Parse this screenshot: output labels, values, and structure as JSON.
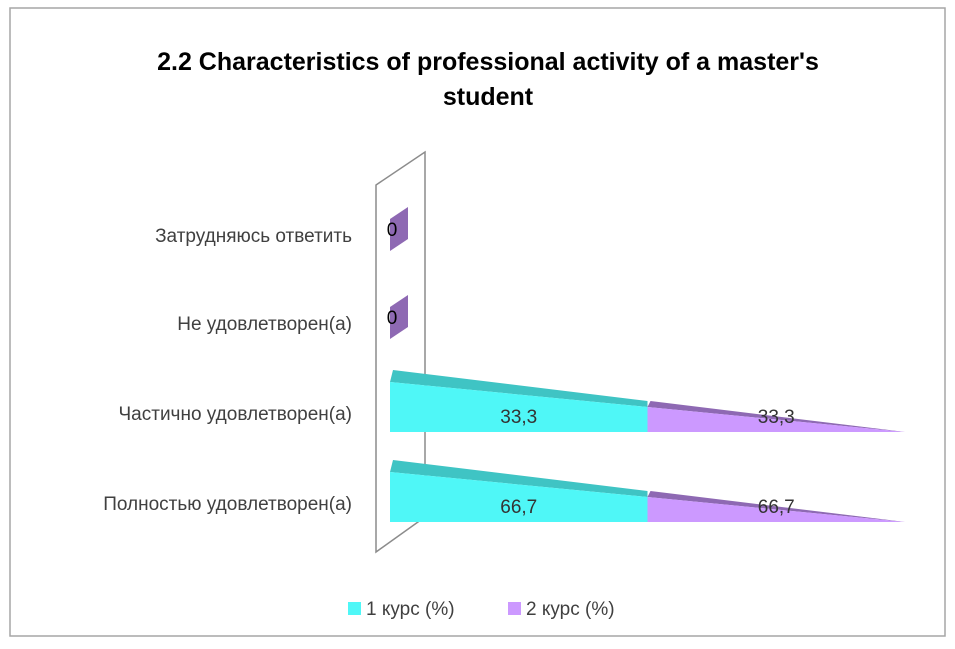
{
  "chart_data": {
    "type": "bar3d_pyramid_stacked_percent",
    "title": "2.2 Characteristics of professional activity of a master's student",
    "categories": [
      "Затрудняюсь ответить",
      "Не удовлетворен(а)",
      "Частично удовлетворен(а)",
      "Полностью удовлетворен(а)"
    ],
    "series": [
      {
        "name": "1 курс (%)",
        "color": "#4ff7f7",
        "top_color": "#3fc4c4",
        "values": [
          0,
          0,
          33.3,
          66.7
        ],
        "value_labels": [
          "0",
          "0",
          "33,3",
          "66,7"
        ]
      },
      {
        "name": "2 курс (%)",
        "color": "#cc99ff",
        "top_color": "#8e69b3",
        "values": [
          0,
          0,
          33.3,
          66.7
        ],
        "value_labels": [
          "0",
          "0",
          "33,3",
          "66,7"
        ]
      }
    ],
    "legend": "bottom"
  }
}
